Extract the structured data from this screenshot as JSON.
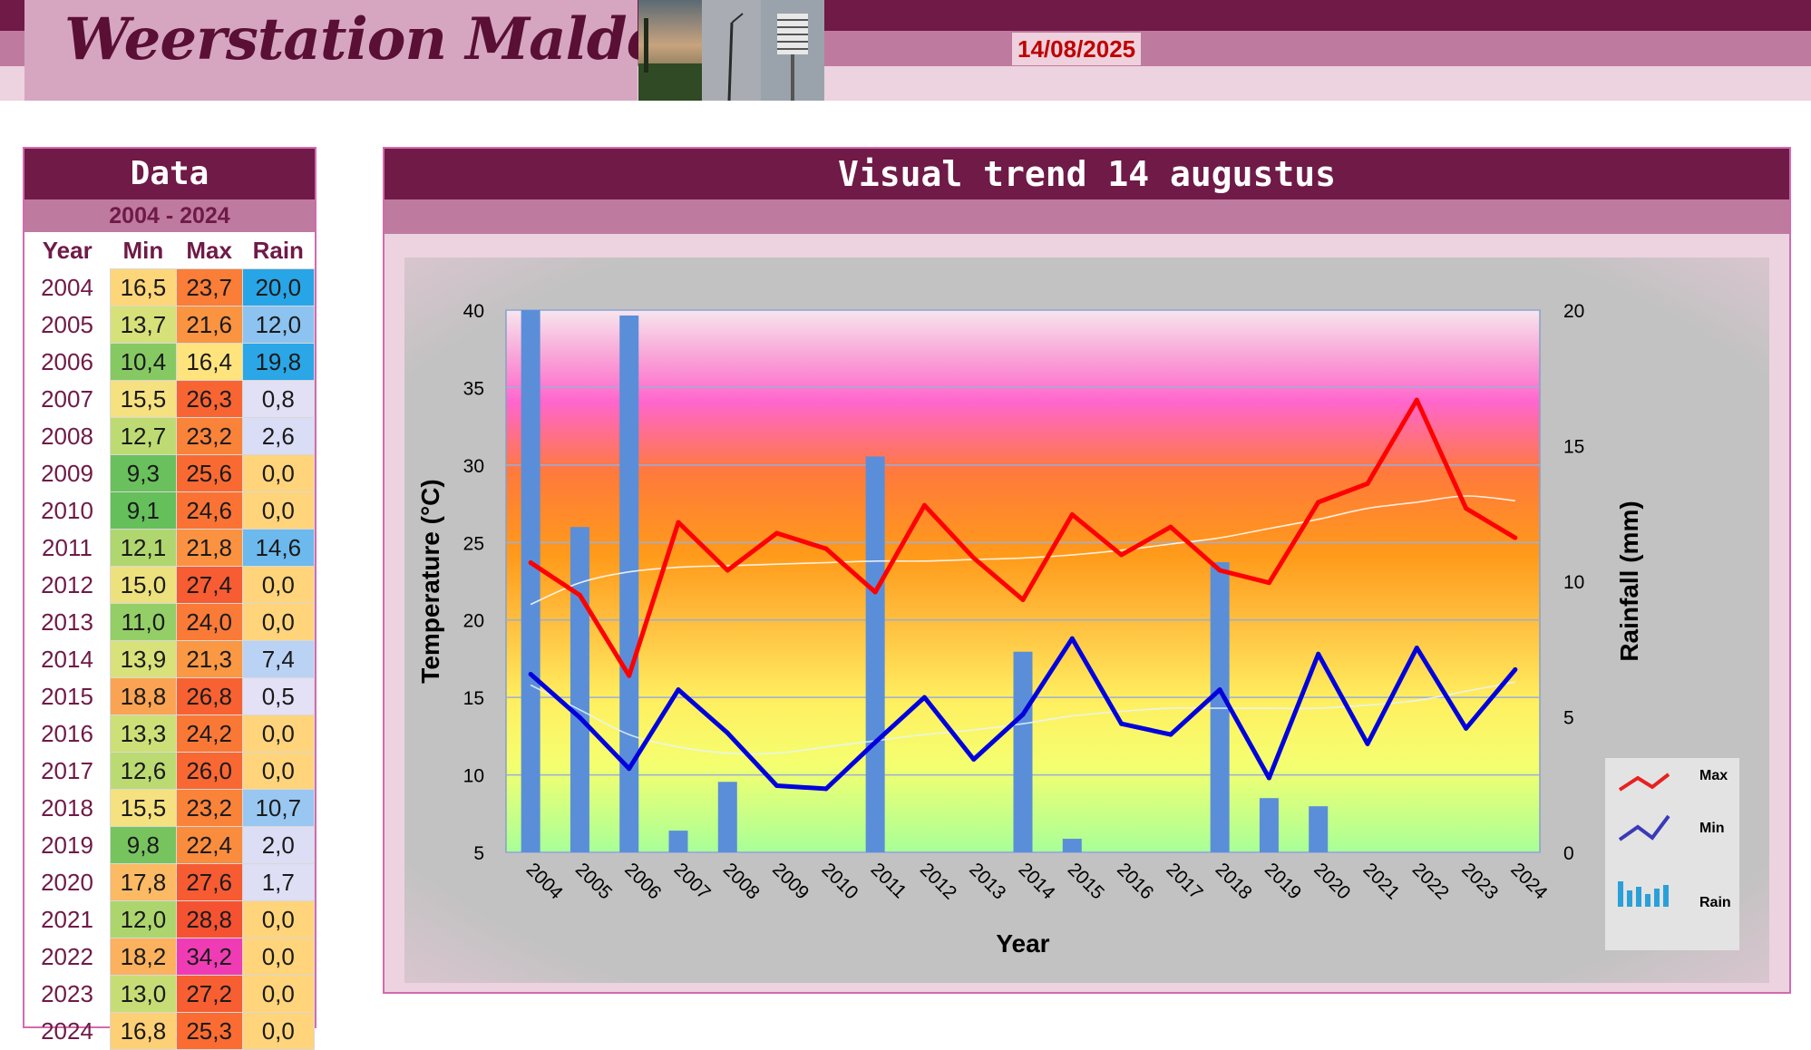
{
  "header": {
    "site_title": "Weerstation Malderen",
    "date": "14/08/2025"
  },
  "colors": {
    "header_dark": "#6f1a47",
    "header_mid": "#bf7a9f",
    "header_light": "#ecd3df",
    "max_line": "#ff0000",
    "min_line": "#0000dd",
    "rain_bars": "#5b8ed8"
  },
  "data_table": {
    "title": "Data",
    "range": "2004 - 2024",
    "headers": [
      "Year",
      "Min",
      "Max",
      "Rain"
    ],
    "rows": [
      {
        "year": "2004",
        "min": "16,5",
        "max": "23,7",
        "rain": "20,0"
      },
      {
        "year": "2005",
        "min": "13,7",
        "max": "21,6",
        "rain": "12,0"
      },
      {
        "year": "2006",
        "min": "10,4",
        "max": "16,4",
        "rain": "19,8"
      },
      {
        "year": "2007",
        "min": "15,5",
        "max": "26,3",
        "rain": "0,8"
      },
      {
        "year": "2008",
        "min": "12,7",
        "max": "23,2",
        "rain": "2,6"
      },
      {
        "year": "2009",
        "min": "9,3",
        "max": "25,6",
        "rain": "0,0"
      },
      {
        "year": "2010",
        "min": "9,1",
        "max": "24,6",
        "rain": "0,0"
      },
      {
        "year": "2011",
        "min": "12,1",
        "max": "21,8",
        "rain": "14,6"
      },
      {
        "year": "2012",
        "min": "15,0",
        "max": "27,4",
        "rain": "0,0"
      },
      {
        "year": "2013",
        "min": "11,0",
        "max": "24,0",
        "rain": "0,0"
      },
      {
        "year": "2014",
        "min": "13,9",
        "max": "21,3",
        "rain": "7,4"
      },
      {
        "year": "2015",
        "min": "18,8",
        "max": "26,8",
        "rain": "0,5"
      },
      {
        "year": "2016",
        "min": "13,3",
        "max": "24,2",
        "rain": "0,0"
      },
      {
        "year": "2017",
        "min": "12,6",
        "max": "26,0",
        "rain": "0,0"
      },
      {
        "year": "2018",
        "min": "15,5",
        "max": "23,2",
        "rain": "10,7"
      },
      {
        "year": "2019",
        "min": "9,8",
        "max": "22,4",
        "rain": "2,0"
      },
      {
        "year": "2020",
        "min": "17,8",
        "max": "27,6",
        "rain": "1,7"
      },
      {
        "year": "2021",
        "min": "12,0",
        "max": "28,8",
        "rain": "0,0"
      },
      {
        "year": "2022",
        "min": "18,2",
        "max": "34,2",
        "rain": "0,0"
      },
      {
        "year": "2023",
        "min": "13,0",
        "max": "27,2",
        "rain": "0,0"
      },
      {
        "year": "2024",
        "min": "16,8",
        "max": "25,3",
        "rain": "0,0"
      }
    ]
  },
  "chart_title": "Visual trend 14 augustus",
  "chart_data": {
    "type": "line",
    "title": "Visual trend 14 augustus",
    "xlabel": "Year",
    "ylabel": "Temperature (°C)",
    "y2label": "Rainfall (mm)",
    "categories": [
      "2004",
      "2005",
      "2006",
      "2007",
      "2008",
      "2009",
      "2010",
      "2011",
      "2012",
      "2013",
      "2014",
      "2015",
      "2016",
      "2017",
      "2018",
      "2019",
      "2020",
      "2021",
      "2022",
      "2023",
      "2024"
    ],
    "ylim": [
      5,
      40
    ],
    "y_ticks": [
      5,
      10,
      15,
      20,
      25,
      30,
      35,
      40
    ],
    "y2lim": [
      0,
      20
    ],
    "y2_ticks": [
      0,
      5,
      10,
      15,
      20
    ],
    "grid": true,
    "legend_position": "bottom-right",
    "series": [
      {
        "name": "Max",
        "type": "line",
        "axis": "left",
        "values": [
          23.7,
          21.6,
          16.4,
          26.3,
          23.2,
          25.6,
          24.6,
          21.8,
          27.4,
          24.0,
          21.3,
          26.8,
          24.2,
          26.0,
          23.2,
          22.4,
          27.6,
          28.8,
          34.2,
          27.2,
          25.3
        ]
      },
      {
        "name": "Min",
        "type": "line",
        "axis": "left",
        "values": [
          16.5,
          13.7,
          10.4,
          15.5,
          12.7,
          9.3,
          9.1,
          12.1,
          15.0,
          11.0,
          13.9,
          18.8,
          13.3,
          12.6,
          15.5,
          9.8,
          17.8,
          12.0,
          18.2,
          13.0,
          16.8
        ]
      },
      {
        "name": "Rain",
        "type": "bar",
        "axis": "right",
        "values": [
          20.0,
          12.0,
          19.8,
          0.8,
          2.6,
          0.0,
          0.0,
          14.6,
          0.0,
          0.0,
          7.4,
          0.5,
          0.0,
          0.0,
          10.7,
          2.0,
          1.7,
          0.0,
          0.0,
          0.0,
          0.0
        ]
      }
    ],
    "trendlines": {
      "max": [
        21.0,
        22.4,
        23.1,
        23.4,
        23.5,
        23.6,
        23.7,
        23.8,
        23.8,
        23.9,
        24.0,
        24.2,
        24.5,
        24.9,
        25.3,
        25.9,
        26.5,
        27.2,
        27.6,
        28.0,
        27.7
      ],
      "min": [
        15.8,
        14.2,
        12.6,
        11.8,
        11.4,
        11.4,
        11.8,
        12.2,
        12.6,
        12.9,
        13.3,
        13.8,
        14.1,
        14.3,
        14.3,
        14.3,
        14.3,
        14.5,
        14.8,
        15.4,
        16.0
      ]
    },
    "legend": [
      "Max",
      "Min",
      "Rain"
    ]
  }
}
